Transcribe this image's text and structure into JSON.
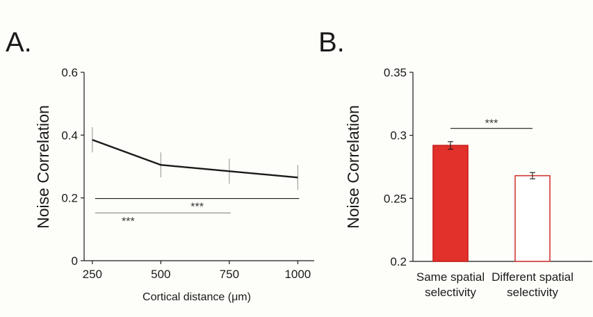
{
  "panels": {
    "a_label": "A.",
    "b_label": "B."
  },
  "chart_data": [
    {
      "type": "line",
      "panel": "A.",
      "title": "",
      "xlabel": "Cortical distance (μm)",
      "ylabel": "Noise Correlation",
      "x": [
        250,
        500,
        750,
        1000
      ],
      "x_tick_labels": [
        "250",
        "500",
        "750",
        "1000"
      ],
      "y_ticks": [
        0,
        0.2,
        0.4,
        0.6
      ],
      "y_tick_labels": [
        "0",
        "0.2",
        "0.4",
        "0.6"
      ],
      "ylim": [
        0,
        0.6
      ],
      "xlim": [
        220,
        1060
      ],
      "series": [
        {
          "values": [
            0.385,
            0.305,
            0.285,
            0.265
          ],
          "errors": [
            0.04,
            0.04,
            0.04,
            0.04
          ],
          "color": "#1a1a1a"
        }
      ],
      "significance": [
        {
          "from": 250,
          "to": 1000,
          "y": 0.198,
          "label": "***",
          "color": "#1a1a1a"
        },
        {
          "from": 250,
          "to": 750,
          "y": 0.152,
          "label": "***",
          "color": "#888888"
        }
      ],
      "grid": false
    },
    {
      "type": "bar",
      "panel": "B.",
      "title": "",
      "xlabel": "",
      "ylabel": "Noise Correlation",
      "categories": [
        "Same spatial selectivity",
        "Different spatial selectivity"
      ],
      "category_lines": [
        [
          "Same spatial",
          "selectivity"
        ],
        [
          "Different spatial",
          "selectivity"
        ]
      ],
      "values": [
        0.292,
        0.268
      ],
      "errors": [
        0.003,
        0.0025
      ],
      "fill_colors": [
        "#e2302a",
        "#ffffff"
      ],
      "edge_colors": [
        "#c8201c",
        "#d03a34"
      ],
      "y_ticks": [
        0.2,
        0.25,
        0.3,
        0.35
      ],
      "y_tick_labels": [
        "0.2",
        "0.25",
        "0.3",
        "0.35"
      ],
      "ylim": [
        0.2,
        0.35
      ],
      "significance": [
        {
          "from": 0,
          "to": 1,
          "y": 0.3055,
          "label": "***",
          "color": "#1a1a1a"
        }
      ],
      "grid": false
    }
  ]
}
